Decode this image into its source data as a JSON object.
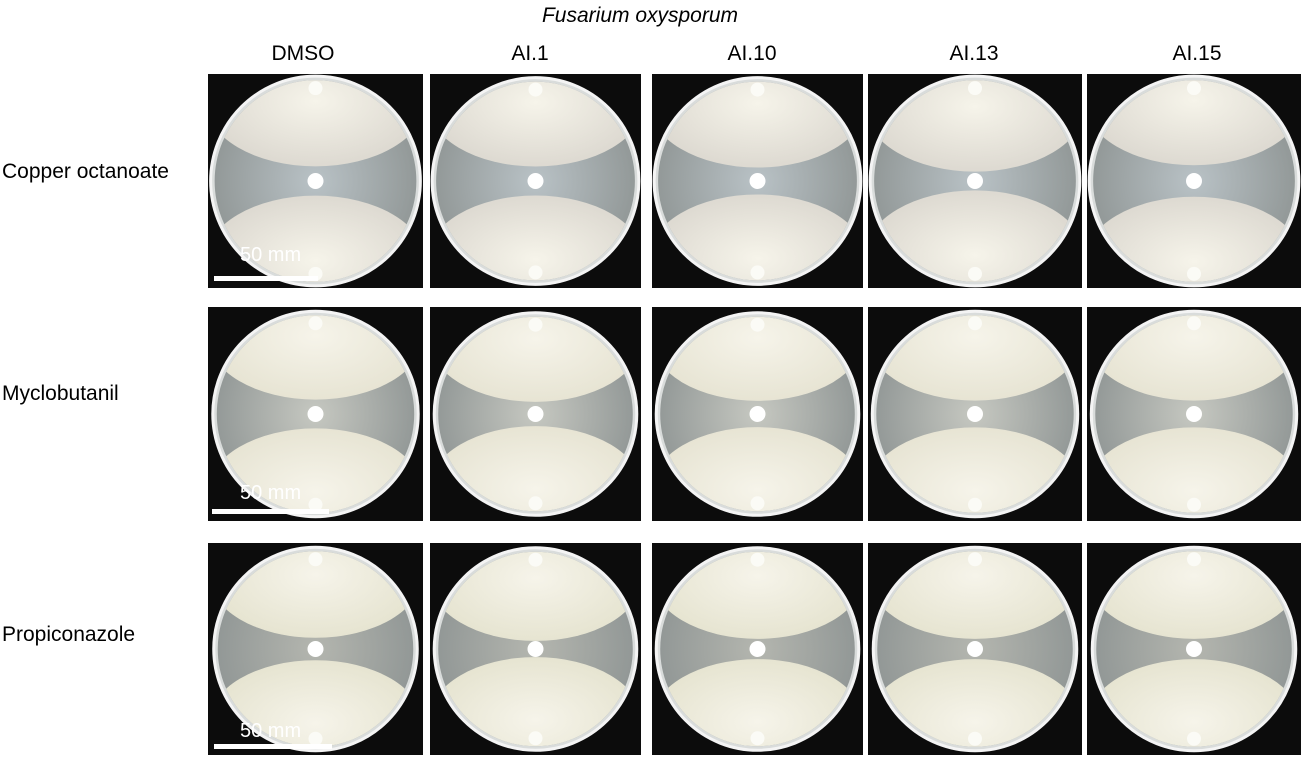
{
  "figure": {
    "title": "Fusarium oxysporum",
    "columns": [
      "DMSO",
      "AI.1",
      "AI.10",
      "AI.13",
      "AI.15"
    ],
    "rows": [
      "Copper octanoate",
      "Myclobutanil",
      "Propiconazole"
    ],
    "scale_label": "50 mm"
  },
  "plate_appearance": {
    "row0": {
      "colony_color": "#d8d4cc",
      "agar_color": "#b9c2c6"
    },
    "row1": {
      "colony_color": "#e4e1cf",
      "agar_color": "#c6c8c1"
    },
    "row2": {
      "colony_color": "#e3e1cc",
      "agar_color": "#b4b6af"
    }
  }
}
